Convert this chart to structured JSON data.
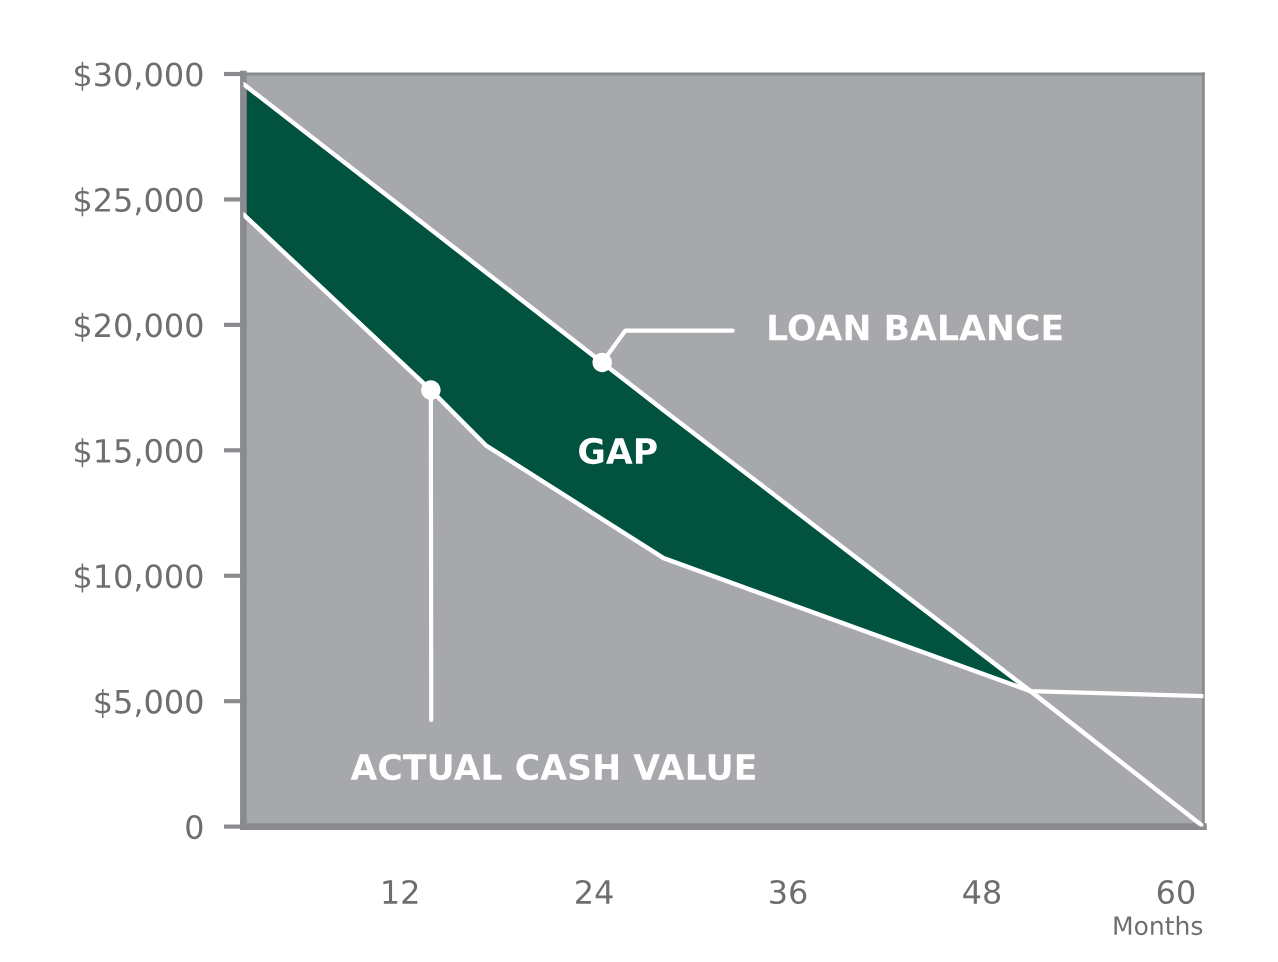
{
  "chart_data": {
    "type": "line",
    "xlabel": "Months",
    "xlim": [
      2.3,
      61.7
    ],
    "xticks": [
      12,
      24,
      36,
      48,
      60
    ],
    "ylim": [
      0,
      30000
    ],
    "yticks": [
      0,
      {
        "value": 5000,
        "label": "$5,000"
      },
      {
        "value": 10000,
        "label": "$10,000"
      },
      {
        "value": 15000,
        "label": "$15,000"
      },
      {
        "value": 20000,
        "label": "$20,000"
      },
      {
        "value": 25000,
        "label": "$25,000"
      },
      {
        "value": 30000,
        "label": "$30,000"
      }
    ],
    "series": [
      {
        "color": "#ffffff",
        "x": [
          2.3,
          13.9,
          17.3,
          28.3,
          51,
          61.7
        ],
        "values": [
          29600,
          23800,
          22100,
          16600,
          5400,
          0
        ],
        "lower": [
          24400,
          17400,
          15200,
          10700,
          5400,
          null
        ],
        "upper": [
          29600,
          23800,
          22100,
          16600,
          5400,
          null
        ]
      },
      {
        "color": "#ffffff",
        "x": [
          2.3,
          13.9,
          17.3,
          28.3,
          51,
          61.7
        ],
        "values": [
          24400,
          17400,
          15200,
          10700,
          5400,
          5200
        ]
      }
    ],
    "annotations": [
      {
        "text": "LOAN BALANCE",
        "x": 24.5,
        "y": 18500
      },
      {
        "text": "ACTUAL CASH VALUE",
        "x": 13.9,
        "y": 17400
      },
      "GAP"
    ]
  }
}
